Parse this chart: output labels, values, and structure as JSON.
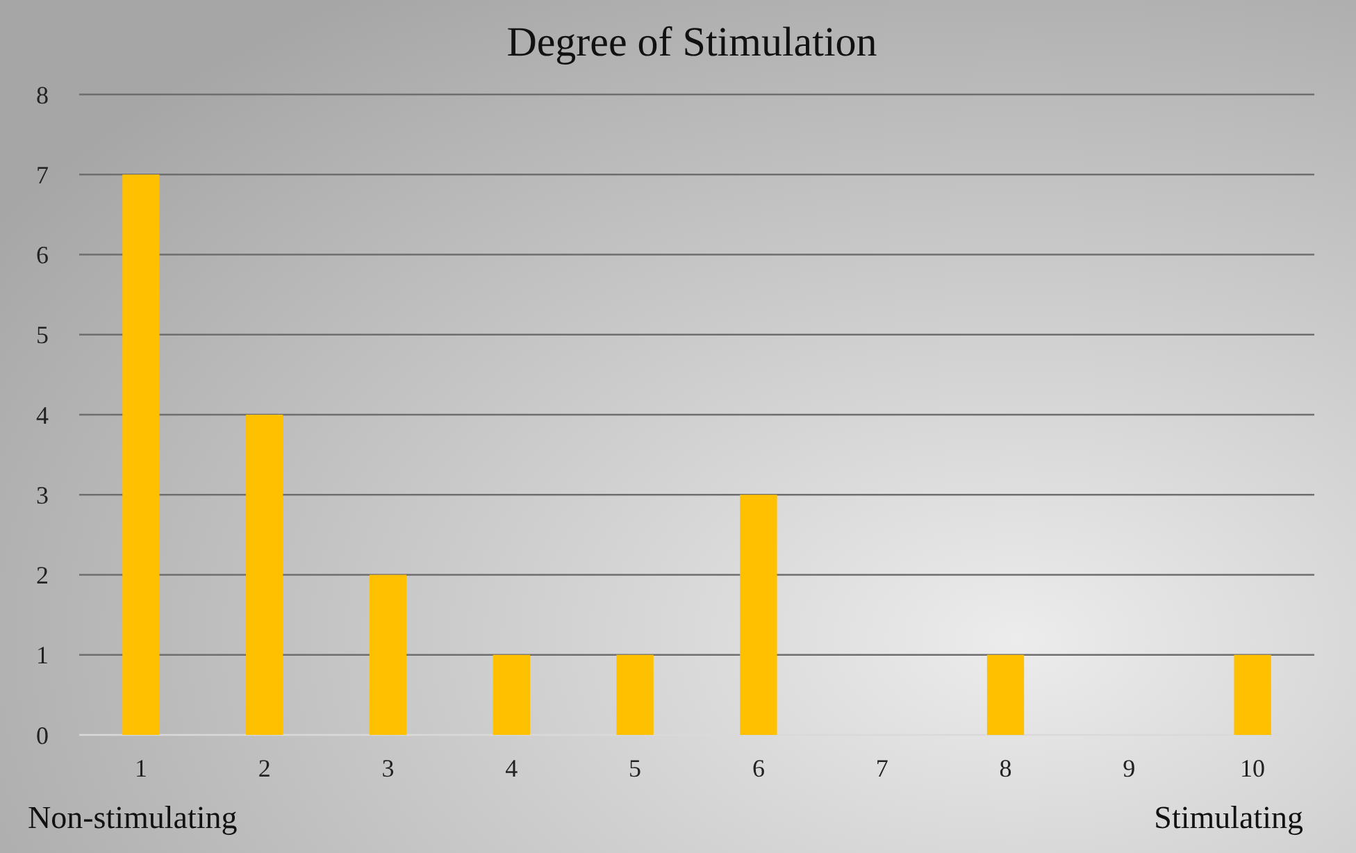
{
  "chart_data": {
    "type": "bar",
    "title": "Degree of Stimulation",
    "categories": [
      "1",
      "2",
      "3",
      "4",
      "5",
      "6",
      "7",
      "8",
      "9",
      "10"
    ],
    "values": [
      7,
      4,
      2,
      1,
      1,
      3,
      0,
      1,
      0,
      1
    ],
    "color": "#ffc000",
    "ylim": [
      0,
      8
    ],
    "yticks": [
      0,
      1,
      2,
      3,
      4,
      5,
      6,
      7,
      8
    ],
    "grid": "y",
    "annotations": [
      "Non-stimulating",
      "Stimulating"
    ]
  }
}
